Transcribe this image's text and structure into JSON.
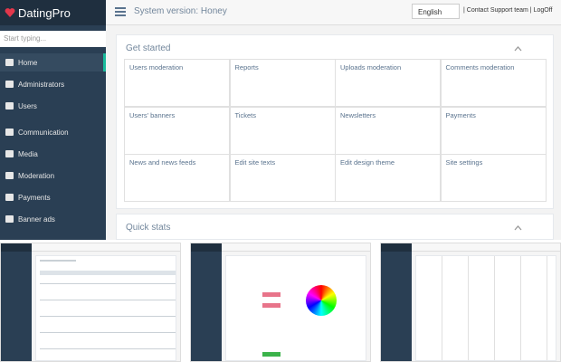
{
  "header": {
    "logo": "DatingPro",
    "version": "System version: Honey",
    "language": "English",
    "links": "| Contact Support team | LogOff"
  },
  "sidebar": {
    "search": "Start typing...",
    "items": [
      "Home",
      "Administrators",
      "Users",
      "Communication",
      "Media",
      "Moderation",
      "Payments",
      "Banner ads"
    ]
  },
  "panels": {
    "get_started": {
      "title": "Get started",
      "tiles": [
        "Users moderation",
        "Reports",
        "Uploads moderation",
        "Comments moderation",
        "Users' banners",
        "Tickets",
        "Newsletters",
        "Payments",
        "News and news feeds",
        "Edit site texts",
        "Edit design theme",
        "Site settings"
      ]
    },
    "quick_stats": {
      "title": "Quick stats"
    }
  }
}
